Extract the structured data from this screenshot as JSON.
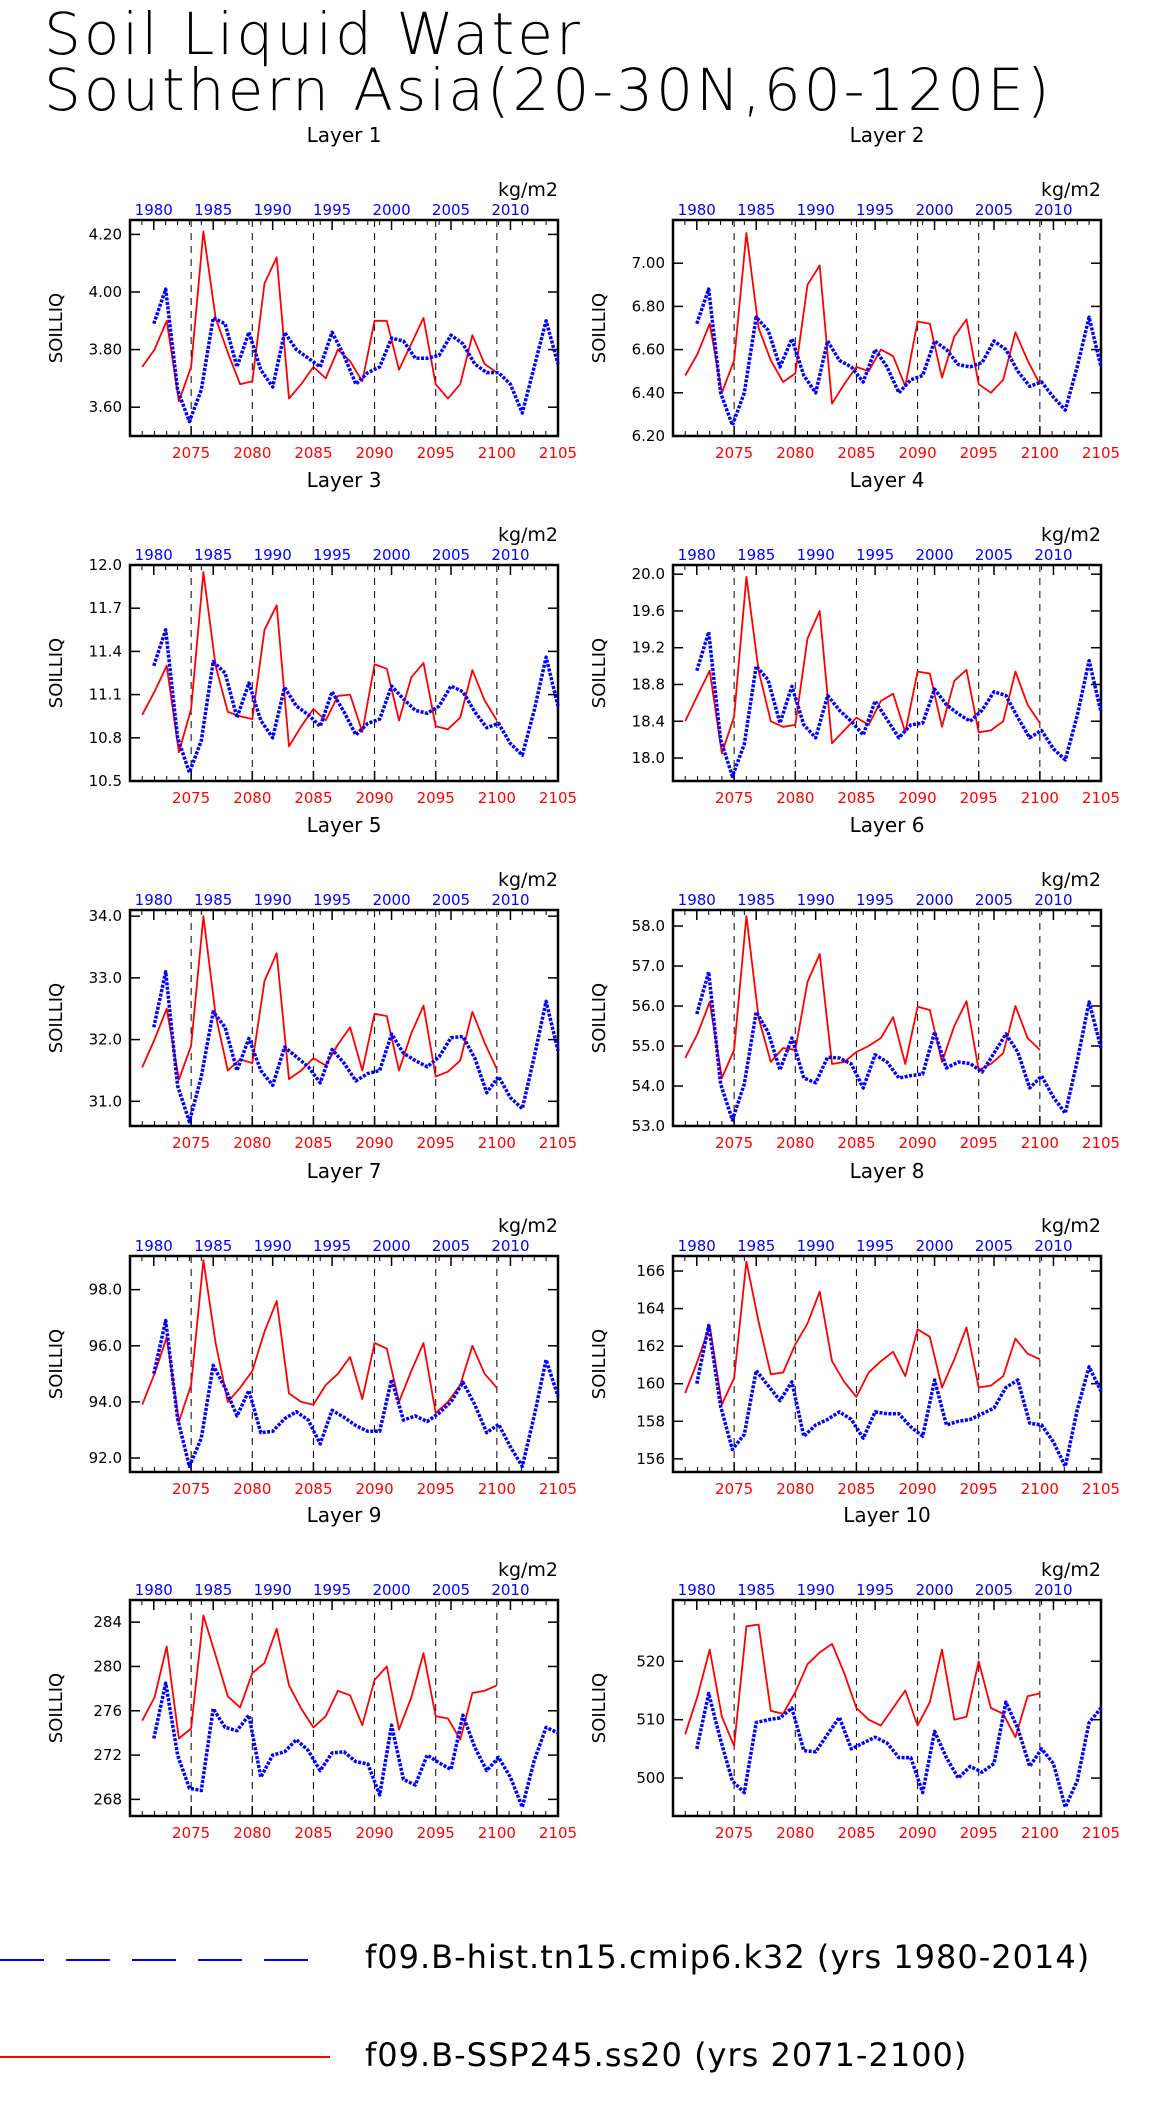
{
  "title": {
    "line1": "Soil Liquid Water",
    "line2": "Southern Asia(20-30N,60-120E)"
  },
  "legend": {
    "hist_label": "f09.B-hist.tn15.cmip6.k32 (yrs 1980-2014)",
    "ssp_label": "f09.B-SSP245.ss20 (yrs 2071-2100)",
    "hist_color": "#0000ff",
    "ssp_color": "#ff0000"
  },
  "axes": {
    "ylabel": "SOILLIQ",
    "units": "kg/m2",
    "top_ticks": [
      "1980",
      "1985",
      "1990",
      "1995",
      "2000",
      "2005",
      "2010"
    ],
    "bottom_ticks": [
      "2075",
      "2080",
      "2085",
      "2090",
      "2095",
      "2100",
      "2105"
    ],
    "top_range": [
      1978,
      2014
    ],
    "bottom_range": [
      2070,
      2105
    ],
    "grid": "vertical dashed lines at tick positions"
  },
  "chart_data": [
    {
      "type": "line",
      "title": "Layer 1",
      "ylabel": "SOILLIQ",
      "ylim": [
        3.5,
        4.25
      ],
      "yticks": [
        "3.60",
        "3.80",
        "4.00",
        "4.20"
      ],
      "series": [
        {
          "name": "f09.B-hist.tn15.cmip6.k32 (yrs 1980-2014)",
          "x_start": 1980,
          "values": [
            3.89,
            4.01,
            3.66,
            3.55,
            3.66,
            3.91,
            3.89,
            3.74,
            3.86,
            3.73,
            3.67,
            3.86,
            3.8,
            3.77,
            3.74,
            3.86,
            3.78,
            3.68,
            3.72,
            3.74,
            3.84,
            3.83,
            3.77,
            3.77,
            3.78,
            3.85,
            3.82,
            3.75,
            3.72,
            3.72,
            3.68,
            3.58,
            3.74,
            3.9,
            3.75
          ]
        },
        {
          "name": "f09.B-SSP245.ss20 (yrs 2071-2100)",
          "x_start": 2071,
          "values": [
            3.74,
            3.8,
            3.9,
            3.62,
            3.74,
            4.21,
            3.91,
            3.79,
            3.68,
            3.69,
            4.03,
            4.12,
            3.63,
            3.68,
            3.74,
            3.7,
            3.8,
            3.76,
            3.69,
            3.9,
            3.9,
            3.73,
            3.82,
            3.91,
            3.68,
            3.63,
            3.68,
            3.85,
            3.75,
            3.72
          ]
        }
      ]
    },
    {
      "type": "line",
      "title": "Layer 2",
      "ylabel": "SOILLIQ",
      "ylim": [
        6.2,
        7.2
      ],
      "yticks": [
        "6.20",
        "6.40",
        "6.60",
        "6.80",
        "7.00"
      ],
      "series": [
        {
          "name": "f09.B-hist.tn15.cmip6.k32 (yrs 1980-2014)",
          "x_start": 1980,
          "values": [
            6.72,
            6.88,
            6.4,
            6.25,
            6.4,
            6.75,
            6.69,
            6.52,
            6.65,
            6.48,
            6.4,
            6.64,
            6.55,
            6.52,
            6.45,
            6.6,
            6.52,
            6.4,
            6.46,
            6.48,
            6.64,
            6.6,
            6.53,
            6.52,
            6.54,
            6.64,
            6.6,
            6.5,
            6.43,
            6.45,
            6.38,
            6.32,
            6.52,
            6.75,
            6.52
          ]
        },
        {
          "name": "f09.B-SSP245.ss20 (yrs 2071-2100)",
          "x_start": 2071,
          "values": [
            6.48,
            6.58,
            6.72,
            6.4,
            6.55,
            7.14,
            6.7,
            6.55,
            6.45,
            6.49,
            6.9,
            6.99,
            6.35,
            6.44,
            6.52,
            6.5,
            6.6,
            6.57,
            6.43,
            6.73,
            6.72,
            6.47,
            6.66,
            6.74,
            6.44,
            6.4,
            6.46,
            6.68,
            6.55,
            6.44
          ]
        }
      ]
    },
    {
      "type": "line",
      "title": "Layer 3",
      "ylabel": "SOILLIQ",
      "ylim": [
        10.5,
        12.0
      ],
      "yticks": [
        "10.5",
        "10.8",
        "11.1",
        "11.4",
        "11.7",
        "12.0"
      ],
      "series": [
        {
          "name": "f09.B-hist.tn15.cmip6.k32 (yrs 1980-2014)",
          "x_start": 1980,
          "values": [
            11.3,
            11.55,
            10.8,
            10.56,
            10.78,
            11.33,
            11.25,
            10.94,
            11.18,
            10.92,
            10.8,
            11.15,
            11.02,
            10.96,
            10.88,
            11.12,
            10.98,
            10.82,
            10.9,
            10.93,
            11.16,
            11.07,
            10.99,
            10.97,
            11.02,
            11.16,
            11.12,
            10.98,
            10.87,
            10.9,
            10.76,
            10.68,
            10.99,
            11.36,
            11.02
          ]
        },
        {
          "name": "f09.B-SSP245.ss20 (yrs 2071-2100)",
          "x_start": 2071,
          "values": [
            10.96,
            11.12,
            11.3,
            10.7,
            11.0,
            11.95,
            11.3,
            10.98,
            10.95,
            10.93,
            11.55,
            11.72,
            10.74,
            10.88,
            11.0,
            10.92,
            11.09,
            11.1,
            10.84,
            11.31,
            11.28,
            10.92,
            11.22,
            11.32,
            10.88,
            10.86,
            10.94,
            11.27,
            11.06,
            10.92
          ]
        }
      ]
    },
    {
      "type": "line",
      "title": "Layer 4",
      "ylabel": "SOILLIQ",
      "ylim": [
        17.75,
        20.1
      ],
      "yticks": [
        "18.0",
        "18.4",
        "18.8",
        "19.2",
        "19.6",
        "20.0"
      ],
      "series": [
        {
          "name": "f09.B-hist.tn15.cmip6.k32 (yrs 1980-2014)",
          "x_start": 1980,
          "values": [
            18.95,
            19.37,
            18.2,
            17.8,
            18.15,
            19.0,
            18.85,
            18.38,
            18.78,
            18.36,
            18.22,
            18.68,
            18.52,
            18.4,
            18.25,
            18.62,
            18.42,
            18.22,
            18.36,
            18.38,
            18.75,
            18.58,
            18.48,
            18.4,
            18.52,
            18.72,
            18.68,
            18.44,
            18.22,
            18.3,
            18.1,
            17.98,
            18.46,
            19.06,
            18.5
          ]
        },
        {
          "name": "f09.B-SSP245.ss20 (yrs 2071-2100)",
          "x_start": 2071,
          "values": [
            18.4,
            18.68,
            18.95,
            18.05,
            18.45,
            19.97,
            18.95,
            18.4,
            18.34,
            18.36,
            19.3,
            19.6,
            18.16,
            18.3,
            18.44,
            18.36,
            18.62,
            18.7,
            18.28,
            18.94,
            18.92,
            18.34,
            18.84,
            18.96,
            18.28,
            18.3,
            18.4,
            18.94,
            18.58,
            18.38
          ]
        }
      ]
    },
    {
      "type": "line",
      "title": "Layer 5",
      "ylabel": "SOILLIQ",
      "ylim": [
        30.6,
        34.1
      ],
      "yticks": [
        "31.0",
        "32.0",
        "33.0",
        "34.0"
      ],
      "series": [
        {
          "name": "f09.B-hist.tn15.cmip6.k32 (yrs 1980-2014)",
          "x_start": 1980,
          "values": [
            32.2,
            33.1,
            31.25,
            30.67,
            31.4,
            32.45,
            32.2,
            31.5,
            32.02,
            31.5,
            31.26,
            31.88,
            31.72,
            31.56,
            31.3,
            31.84,
            31.62,
            31.33,
            31.45,
            31.5,
            32.09,
            31.78,
            31.66,
            31.56,
            31.72,
            32.03,
            32.05,
            31.7,
            31.14,
            31.4,
            31.06,
            30.88,
            31.72,
            32.62,
            31.82
          ]
        },
        {
          "name": "f09.B-SSP245.ss20 (yrs 2071-2100)",
          "x_start": 2071,
          "values": [
            31.55,
            32.0,
            32.5,
            31.35,
            31.9,
            34.0,
            32.4,
            31.5,
            31.68,
            31.62,
            32.95,
            33.4,
            31.36,
            31.5,
            31.7,
            31.58,
            31.92,
            32.2,
            31.5,
            32.42,
            32.38,
            31.5,
            32.1,
            32.55,
            31.4,
            31.48,
            31.66,
            32.45,
            31.95,
            31.52
          ]
        }
      ]
    },
    {
      "type": "line",
      "title": "Layer 6",
      "ylabel": "SOILLIQ",
      "ylim": [
        53.0,
        58.4
      ],
      "yticks": [
        "53.0",
        "54.0",
        "55.0",
        "56.0",
        "57.0",
        "58.0"
      ],
      "series": [
        {
          "name": "f09.B-hist.tn15.cmip6.k32 (yrs 1980-2014)",
          "x_start": 1980,
          "values": [
            55.8,
            56.85,
            54.05,
            53.15,
            54.05,
            55.85,
            55.35,
            54.4,
            55.2,
            54.2,
            54.08,
            54.72,
            54.7,
            54.55,
            53.95,
            54.78,
            54.6,
            54.2,
            54.26,
            54.3,
            55.35,
            54.45,
            54.6,
            54.56,
            54.35,
            54.82,
            55.3,
            54.85,
            53.95,
            54.25,
            53.72,
            53.32,
            54.62,
            56.1,
            54.95
          ]
        },
        {
          "name": "f09.B-SSP245.ss20 (yrs 2071-2100)",
          "x_start": 2071,
          "values": [
            54.7,
            55.3,
            56.1,
            54.2,
            54.9,
            58.25,
            55.7,
            54.6,
            54.95,
            54.9,
            56.6,
            57.3,
            54.55,
            54.6,
            54.85,
            55.0,
            55.2,
            55.72,
            54.55,
            55.98,
            55.9,
            54.6,
            55.5,
            56.12,
            54.4,
            54.55,
            54.82,
            56.0,
            55.2,
            54.9
          ]
        }
      ]
    },
    {
      "type": "line",
      "title": "Layer 7",
      "ylabel": "SOILLIQ",
      "ylim": [
        91.5,
        99.2
      ],
      "yticks": [
        "92.0",
        "94.0",
        "96.0",
        "98.0"
      ],
      "series": [
        {
          "name": "f09.B-hist.tn15.cmip6.k32 (yrs 1980-2014)",
          "x_start": 1980,
          "values": [
            95.0,
            96.9,
            93.4,
            91.7,
            92.7,
            95.3,
            94.5,
            93.5,
            94.4,
            92.9,
            92.95,
            93.4,
            93.65,
            93.35,
            92.5,
            93.7,
            93.45,
            93.15,
            92.95,
            92.95,
            94.8,
            93.35,
            93.5,
            93.3,
            93.6,
            94.0,
            94.7,
            93.9,
            92.9,
            93.2,
            92.4,
            91.7,
            93.5,
            95.5,
            94.2
          ]
        },
        {
          "name": "f09.B-SSP245.ss20 (yrs 2071-2100)",
          "x_start": 2071,
          "values": [
            93.9,
            95.0,
            96.3,
            93.3,
            94.6,
            99.05,
            96.1,
            94.0,
            94.5,
            95.1,
            96.5,
            97.6,
            94.3,
            94.0,
            93.9,
            94.6,
            95.0,
            95.6,
            94.1,
            96.1,
            95.9,
            94.0,
            95.1,
            96.1,
            93.6,
            94.0,
            94.6,
            96.0,
            95.0,
            94.5
          ]
        }
      ]
    },
    {
      "type": "line",
      "title": "Layer 8",
      "ylabel": "SOILLIQ",
      "ylim": [
        155.3,
        166.8
      ],
      "yticks": [
        "156",
        "158",
        "160",
        "162",
        "164",
        "166"
      ],
      "series": [
        {
          "name": "f09.B-hist.tn15.cmip6.k32 (yrs 1980-2014)",
          "x_start": 1980,
          "values": [
            160.0,
            163.1,
            158.8,
            156.5,
            157.3,
            160.7,
            159.9,
            159.1,
            160.1,
            157.2,
            157.8,
            158.1,
            158.5,
            158.1,
            157.1,
            158.5,
            158.4,
            158.4,
            157.7,
            157.2,
            160.2,
            157.8,
            158.0,
            158.1,
            158.4,
            158.7,
            159.8,
            160.2,
            157.9,
            157.8,
            156.9,
            155.6,
            158.6,
            160.9,
            159.6
          ]
        },
        {
          "name": "f09.B-SSP245.ss20 (yrs 2071-2100)",
          "x_start": 2071,
          "values": [
            159.5,
            161.2,
            163.1,
            158.9,
            160.3,
            166.5,
            163.3,
            160.5,
            160.6,
            162.1,
            163.2,
            164.9,
            161.2,
            160.1,
            159.3,
            160.6,
            161.2,
            161.7,
            160.4,
            162.9,
            162.5,
            159.8,
            161.3,
            163.0,
            159.8,
            159.9,
            160.4,
            162.4,
            161.6,
            161.3
          ]
        }
      ]
    },
    {
      "type": "line",
      "title": "Layer 9",
      "ylabel": "SOILLIQ",
      "ylim": [
        266.5,
        286.0
      ],
      "yticks": [
        "268",
        "272",
        "276",
        "280",
        "284"
      ],
      "series": [
        {
          "name": "f09.B-hist.tn15.cmip6.k32 (yrs 1980-2014)",
          "x_start": 1980,
          "values": [
            273.5,
            278.5,
            272.0,
            269.0,
            268.8,
            276.2,
            274.5,
            274.2,
            275.6,
            270.0,
            272.0,
            272.3,
            273.4,
            272.4,
            270.6,
            272.2,
            272.3,
            271.4,
            271.2,
            268.4,
            274.7,
            269.8,
            269.3,
            272.0,
            271.3,
            270.7,
            275.6,
            272.7,
            270.6,
            271.8,
            270.0,
            267.3,
            271.5,
            274.5,
            274.0
          ]
        },
        {
          "name": "f09.B-SSP245.ss20 (yrs 2071-2100)",
          "x_start": 2071,
          "values": [
            275.1,
            277.2,
            281.8,
            273.5,
            274.4,
            284.6,
            281.0,
            277.3,
            276.3,
            279.4,
            280.3,
            283.4,
            278.3,
            276.2,
            274.5,
            275.5,
            277.8,
            277.4,
            274.7,
            278.8,
            280.0,
            274.3,
            277.2,
            281.2,
            275.5,
            275.3,
            273.4,
            277.6,
            277.8,
            278.3
          ]
        }
      ]
    },
    {
      "type": "line",
      "title": "Layer 10",
      "ylabel": "SOILLIQ",
      "ylim": [
        493.5,
        530.5
      ],
      "yticks": [
        "500",
        "510",
        "520"
      ],
      "series": [
        {
          "name": "f09.B-hist.tn15.cmip6.k32 (yrs 1980-2014)",
          "x_start": 1980,
          "values": [
            505.0,
            514.5,
            506.5,
            499.5,
            497.5,
            509.5,
            510.0,
            510.3,
            512.0,
            504.7,
            504.5,
            507.5,
            510.4,
            505.0,
            506.0,
            507.0,
            506.0,
            503.5,
            503.5,
            497.5,
            508.0,
            503.5,
            500.0,
            502.0,
            501.0,
            502.5,
            513.0,
            508.5,
            502.0,
            505.0,
            502.5,
            495.0,
            499.5,
            509.5,
            512.0
          ]
        },
        {
          "name": "f09.B-SSP245.ss20 (yrs 2071-2100)",
          "x_start": 2071,
          "values": [
            507.5,
            514.0,
            522.0,
            510.5,
            505.5,
            526.0,
            526.3,
            511.5,
            511.0,
            514.7,
            519.5,
            521.5,
            523.0,
            518.0,
            512.0,
            510.0,
            509.0,
            512.0,
            515.0,
            509.0,
            513.0,
            522.0,
            510.0,
            510.5,
            520.0,
            512.0,
            511.0,
            507.0,
            514.0,
            514.5
          ]
        }
      ]
    }
  ]
}
